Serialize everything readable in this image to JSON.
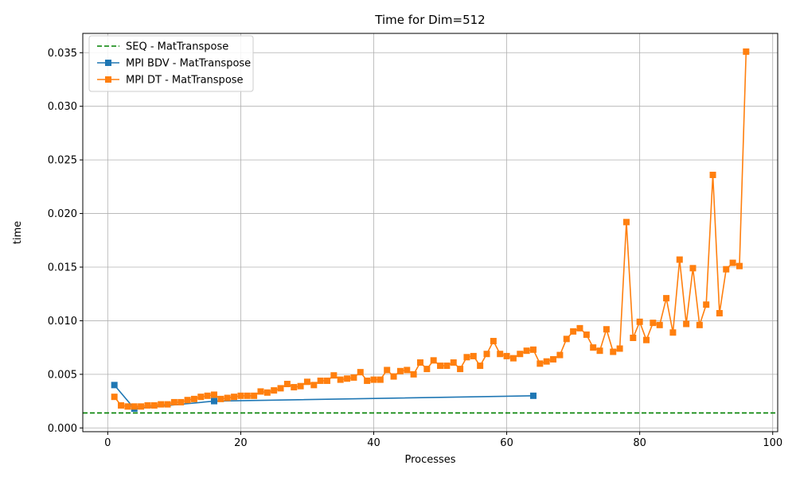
{
  "chart_data": {
    "type": "line",
    "title": "Time for Dim=512",
    "xlabel": "Processes",
    "ylabel": "time",
    "xlim": [
      -3.75,
      100.75
    ],
    "ylim": [
      -0.00035,
      0.0368
    ],
    "xticks": [
      0,
      20,
      40,
      60,
      80,
      100
    ],
    "xtick_labels": [
      "0",
      "20",
      "40",
      "60",
      "80",
      "100"
    ],
    "yticks": [
      0.0,
      0.005,
      0.01,
      0.015,
      0.02,
      0.025,
      0.03,
      0.035
    ],
    "ytick_labels": [
      "0.000",
      "0.005",
      "0.010",
      "0.015",
      "0.020",
      "0.025",
      "0.030",
      "0.035"
    ],
    "grid": true,
    "legend_position": "top-left",
    "series": [
      {
        "name": "SEQ - MatTranspose",
        "kind": "hline",
        "y": 0.0014,
        "color": "#008000",
        "style": "dashed"
      },
      {
        "name": "MPI BDV - MatTranspose",
        "color": "#1f77b4",
        "marker": "square",
        "x": [
          1,
          4,
          16,
          64
        ],
        "y": [
          0.004,
          0.0018,
          0.0025,
          0.003
        ]
      },
      {
        "name": "MPI DT - MatTranspose",
        "color": "#ff7f0e",
        "marker": "square",
        "x": [
          1,
          2,
          3,
          4,
          5,
          6,
          7,
          8,
          9,
          10,
          11,
          12,
          13,
          14,
          15,
          16,
          17,
          18,
          19,
          20,
          21,
          22,
          23,
          24,
          25,
          26,
          27,
          28,
          29,
          30,
          31,
          32,
          33,
          34,
          35,
          36,
          37,
          38,
          39,
          40,
          41,
          42,
          43,
          44,
          45,
          46,
          47,
          48,
          49,
          50,
          51,
          52,
          53,
          54,
          55,
          56,
          57,
          58,
          59,
          60,
          61,
          62,
          63,
          64,
          65,
          66,
          67,
          68,
          69,
          70,
          71,
          72,
          73,
          74,
          75,
          76,
          77,
          78,
          79,
          80,
          81,
          82,
          83,
          84,
          85,
          86,
          87,
          88,
          89,
          90,
          91,
          92,
          93,
          94,
          95,
          96
        ],
        "y": [
          0.0029,
          0.0021,
          0.002,
          0.002,
          0.002,
          0.0021,
          0.0021,
          0.0022,
          0.0022,
          0.0024,
          0.0024,
          0.0026,
          0.0027,
          0.0029,
          0.003,
          0.0031,
          0.0027,
          0.0028,
          0.0029,
          0.003,
          0.003,
          0.003,
          0.0034,
          0.0033,
          0.0035,
          0.0037,
          0.0041,
          0.0038,
          0.0039,
          0.0043,
          0.004,
          0.0044,
          0.0044,
          0.0049,
          0.0045,
          0.0046,
          0.0047,
          0.0052,
          0.0044,
          0.0045,
          0.0045,
          0.0054,
          0.0048,
          0.0053,
          0.0054,
          0.005,
          0.0061,
          0.0055,
          0.0063,
          0.0058,
          0.0058,
          0.0061,
          0.0055,
          0.0066,
          0.0067,
          0.0058,
          0.0069,
          0.0081,
          0.0069,
          0.0067,
          0.0065,
          0.0069,
          0.0072,
          0.0073,
          0.006,
          0.0062,
          0.0064,
          0.0068,
          0.0083,
          0.009,
          0.0093,
          0.0087,
          0.0075,
          0.0072,
          0.0092,
          0.0071,
          0.0074,
          0.0192,
          0.0084,
          0.0099,
          0.0082,
          0.0098,
          0.0096,
          0.0121,
          0.0089,
          0.0157,
          0.0097,
          0.0149,
          0.0096,
          0.0115,
          0.0236,
          0.0107,
          0.0148,
          0.0154,
          0.0151,
          0.0351
        ]
      }
    ]
  }
}
